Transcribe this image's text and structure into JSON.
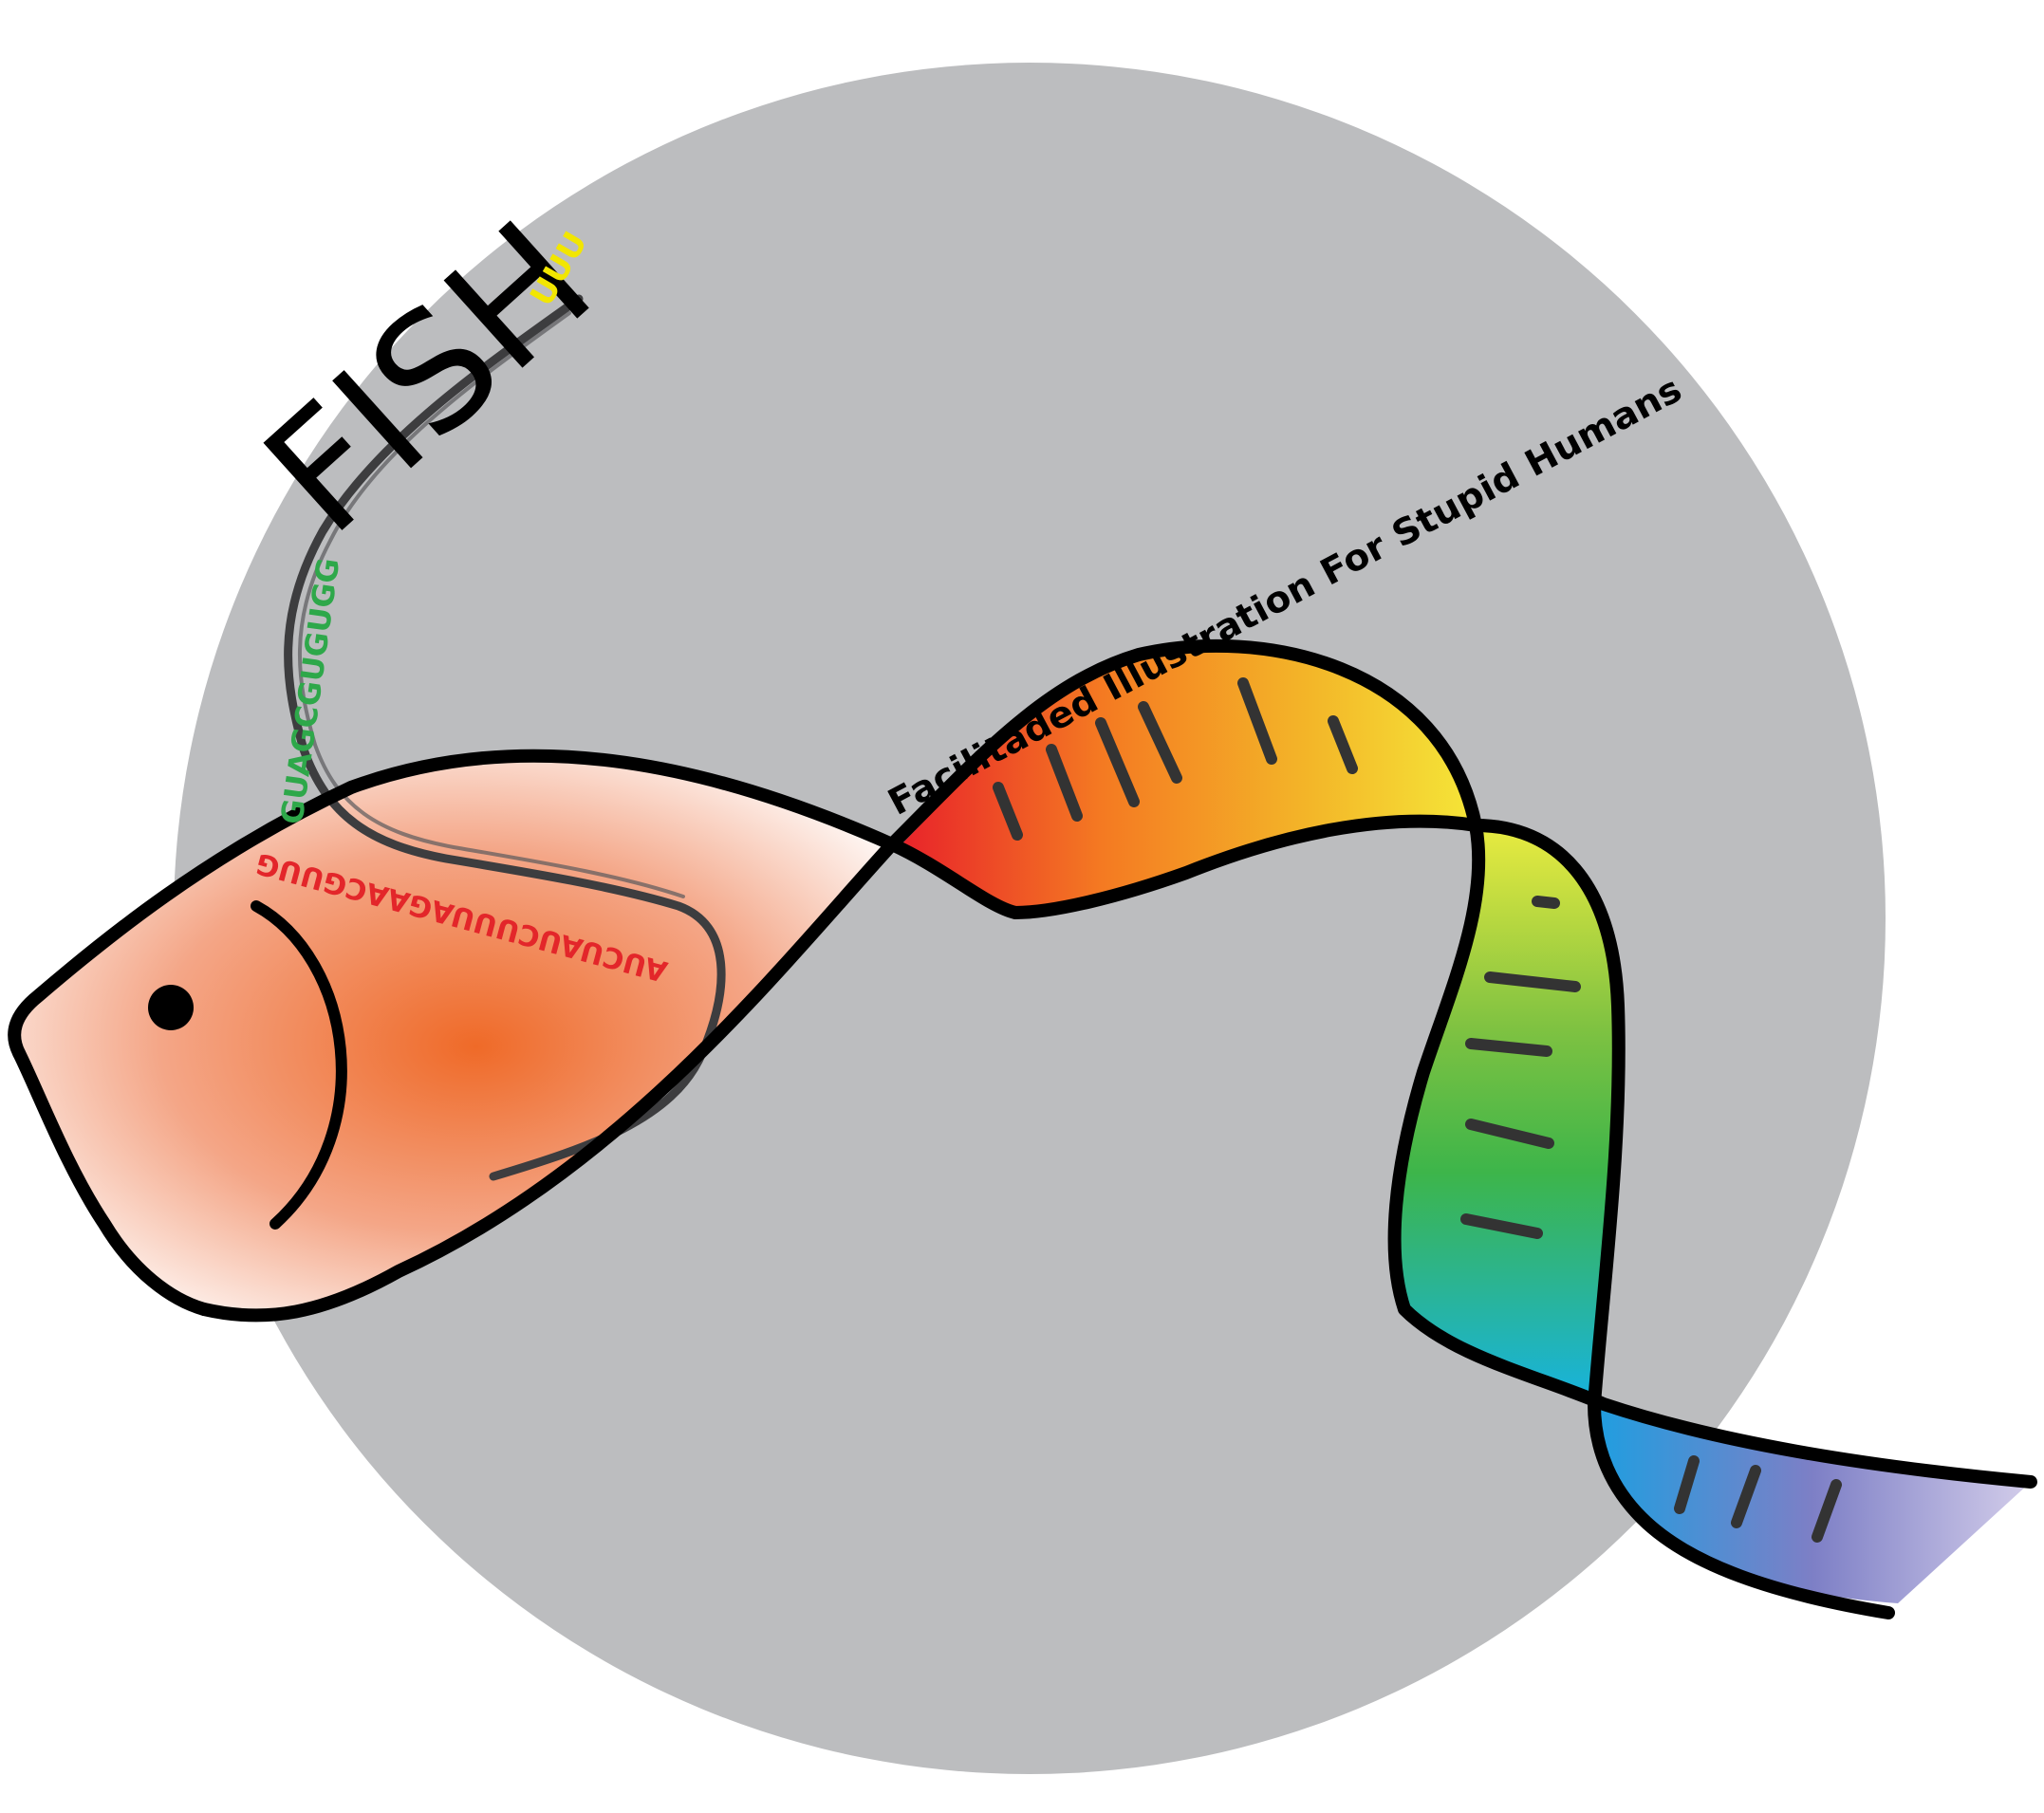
{
  "logo": {
    "title": "FISH",
    "title_suffix": "UUU",
    "subtitle": "Facilitaded Illustration For Stupid Humans",
    "rna_sequence": "GUAGCGUGUGG",
    "rna_sequence_lower": "AUCUAUCUUUAGAACGUUG"
  },
  "colors": {
    "background_circle": "#bcbdbf",
    "outline": "#000000",
    "strand_line": "#3d3d3f",
    "head_center": "#ef6a28",
    "U": "#f2e600",
    "A": "#e3262a",
    "G": "#2ea84a",
    "C": "#2aa0dc",
    "ribbon_stops": [
      "#e8232a",
      "#f47a22",
      "#f3a624",
      "#f5e638",
      "#c9e03a",
      "#3db54a",
      "#1fb8c9",
      "#1f9ee0",
      "#7d7fc6",
      "#c8c2e3"
    ]
  }
}
